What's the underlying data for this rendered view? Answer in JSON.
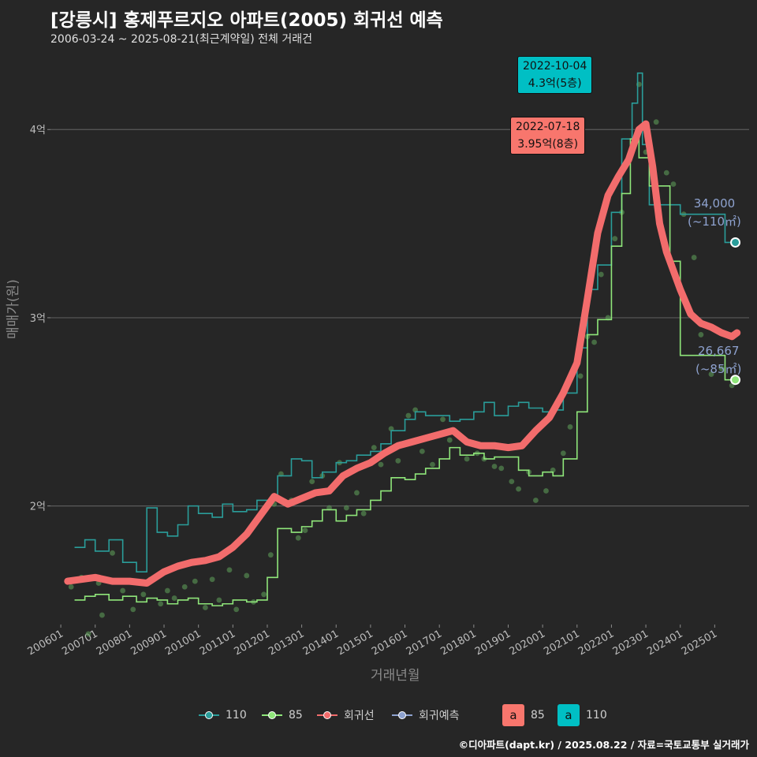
{
  "title": "[강릉시] 홍제푸르지오 아파트(2005) 회귀선 예측",
  "subtitle": "2006-03-24 ~ 2025-08-21(최근계약일) 전체 거래건",
  "credit": "©디아파트(dapt.kr) / 2025.08.22 / 자료=국토교통부 실거래가",
  "legend": {
    "items": [
      {
        "label": "110",
        "color": "#2a9d9a"
      },
      {
        "label": "85",
        "color": "#8fe67a"
      },
      {
        "label": "회귀선",
        "color": "#f26c6c"
      },
      {
        "label": "회귀예측",
        "color": "#8ea2cf"
      }
    ],
    "boxes": [
      {
        "symbol": "a",
        "label": "85",
        "color": "#f8766d"
      },
      {
        "symbol": "a",
        "label": "110",
        "color": "#00bfc4"
      }
    ]
  },
  "callouts": [
    {
      "date": "2022-10-04",
      "value": "4.3억(5층)",
      "color": "#00bfc4"
    },
    {
      "date": "2022-07-18",
      "value": "3.95억(8층)",
      "color": "#f8766d"
    }
  ],
  "end_labels": [
    {
      "value": "34,000",
      "area": "(~110㎡)"
    },
    {
      "value": "26,667",
      "area": "(~85㎡)"
    }
  ],
  "chart_data": {
    "type": "line",
    "title": "[강릉시] 홍제푸르지오 아파트(2005) 회귀선 예측",
    "subtitle": "2006-03-24 ~ 2025-08-21(최근계약일) 전체 거래건",
    "xlabel": "거래년월",
    "ylabel": "매매가(원)",
    "x_ticks": [
      "200601",
      "200701",
      "200801",
      "200901",
      "201001",
      "201101",
      "201201",
      "201301",
      "201401",
      "201501",
      "201601",
      "201701",
      "201801",
      "201901",
      "202001",
      "202101",
      "202201",
      "202301",
      "202401",
      "202501"
    ],
    "y_ticks": [
      {
        "value": 20000,
        "label": "2억"
      },
      {
        "value": 30000,
        "label": "3억"
      },
      {
        "value": 40000,
        "label": "4억"
      }
    ],
    "ylim": [
      13700,
      44200
    ],
    "xlim": [
      2005.7,
      2026.0
    ],
    "grid": true,
    "legend_position": "bottom",
    "series": [
      {
        "name": "110",
        "color": "#2a9d9a",
        "x": [
          2006.4,
          2006.7,
          2007.0,
          2007.4,
          2007.8,
          2008.2,
          2008.5,
          2008.8,
          2009.1,
          2009.4,
          2009.7,
          2010.0,
          2010.4,
          2010.7,
          2011.0,
          2011.4,
          2011.7,
          2012.0,
          2012.3,
          2012.7,
          2013.0,
          2013.3,
          2013.6,
          2014.0,
          2014.3,
          2014.6,
          2015.0,
          2015.3,
          2015.6,
          2016.0,
          2016.3,
          2016.6,
          2017.0,
          2017.3,
          2017.6,
          2018.0,
          2018.3,
          2018.6,
          2019.0,
          2019.3,
          2019.6,
          2020.0,
          2020.3,
          2020.6,
          2021.0,
          2021.3,
          2021.6,
          2022.0,
          2022.3,
          2022.6,
          2022.76,
          2022.9,
          2023.1,
          2023.4,
          2023.7,
          2024.0,
          2024.3,
          2024.6,
          2025.0,
          2025.3,
          2025.6
        ],
        "y": [
          17800,
          18200,
          17600,
          18200,
          17000,
          16500,
          19900,
          18600,
          18400,
          19000,
          20000,
          19600,
          19400,
          20100,
          19700,
          19800,
          20300,
          20300,
          21600,
          22500,
          22400,
          21500,
          21800,
          22300,
          22400,
          22700,
          22900,
          23300,
          24000,
          24600,
          25000,
          24800,
          24800,
          24500,
          24600,
          25000,
          25500,
          24800,
          25300,
          25500,
          25200,
          25000,
          25100,
          26000,
          28400,
          31500,
          32800,
          35600,
          39500,
          41400,
          43000,
          39200,
          36000,
          36000,
          36000,
          35500,
          35500,
          35500,
          35500,
          34000,
          34000
        ]
      },
      {
        "name": "85",
        "color": "#8fe67a",
        "x": [
          2006.4,
          2006.7,
          2007.0,
          2007.4,
          2007.8,
          2008.2,
          2008.5,
          2008.8,
          2009.1,
          2009.4,
          2009.7,
          2010.0,
          2010.4,
          2010.7,
          2011.0,
          2011.4,
          2011.7,
          2012.0,
          2012.3,
          2012.7,
          2013.0,
          2013.3,
          2013.6,
          2014.0,
          2014.3,
          2014.6,
          2015.0,
          2015.3,
          2015.6,
          2016.0,
          2016.3,
          2016.6,
          2017.0,
          2017.3,
          2017.6,
          2018.0,
          2018.3,
          2018.6,
          2019.0,
          2019.3,
          2019.6,
          2020.0,
          2020.3,
          2020.6,
          2021.0,
          2021.3,
          2021.6,
          2022.0,
          2022.3,
          2022.55,
          2022.8,
          2023.1,
          2023.4,
          2023.7,
          2024.0,
          2024.3,
          2024.6,
          2025.0,
          2025.3,
          2025.6
        ],
        "y": [
          15000,
          15200,
          15300,
          15000,
          15200,
          14900,
          15100,
          15000,
          14800,
          15000,
          15100,
          14800,
          14700,
          14800,
          15000,
          14900,
          15000,
          16200,
          18800,
          18600,
          18900,
          19200,
          19800,
          19200,
          19500,
          19800,
          20300,
          20800,
          21500,
          21400,
          21700,
          22000,
          22500,
          23100,
          22700,
          22800,
          22500,
          22600,
          22600,
          21900,
          21600,
          21800,
          21600,
          22500,
          25000,
          29100,
          29900,
          33800,
          36600,
          39500,
          38500,
          37000,
          37000,
          33000,
          28000,
          28000,
          28000,
          28000,
          26700,
          26700
        ]
      },
      {
        "name": "회귀선",
        "color": "#f26c6c",
        "x": [
          2006.2,
          2006.6,
          2007.0,
          2007.5,
          2008.0,
          2008.5,
          2009.0,
          2009.4,
          2009.8,
          2010.2,
          2010.6,
          2011.0,
          2011.4,
          2011.8,
          2012.2,
          2012.6,
          2013.0,
          2013.4,
          2013.8,
          2014.2,
          2014.6,
          2015.0,
          2015.4,
          2015.8,
          2016.2,
          2016.6,
          2017.0,
          2017.4,
          2017.8,
          2018.2,
          2018.6,
          2019.0,
          2019.4,
          2019.8,
          2020.2,
          2020.6,
          2021.0,
          2021.3,
          2021.6,
          2021.9,
          2022.2,
          2022.5,
          2022.8,
          2023.0,
          2023.2,
          2023.4,
          2023.6,
          2023.8,
          2024.0,
          2024.3,
          2024.6,
          2024.9,
          2025.2,
          2025.5,
          2025.65
        ],
        "y": [
          16000,
          16100,
          16200,
          16000,
          16000,
          15900,
          16500,
          16800,
          17000,
          17100,
          17300,
          17800,
          18500,
          19500,
          20500,
          20100,
          20400,
          20700,
          20800,
          21600,
          22000,
          22300,
          22800,
          23200,
          23400,
          23600,
          23800,
          24000,
          23400,
          23200,
          23200,
          23100,
          23200,
          24000,
          24700,
          26000,
          27600,
          31000,
          34500,
          36500,
          37500,
          38400,
          40000,
          40300,
          38000,
          35000,
          33500,
          32500,
          31500,
          30200,
          29700,
          29500,
          29200,
          29000,
          29200
        ]
      }
    ],
    "points": {
      "name": "거래건",
      "x": [
        2006.3,
        2006.6,
        2006.8,
        2007.1,
        2007.2,
        2007.5,
        2007.8,
        2008.1,
        2008.4,
        2008.6,
        2008.9,
        2009.1,
        2009.3,
        2009.6,
        2009.9,
        2010.2,
        2010.4,
        2010.6,
        2010.9,
        2011.1,
        2011.4,
        2011.6,
        2011.9,
        2012.1,
        2012.2,
        2012.4,
        2012.7,
        2012.9,
        2013.1,
        2013.3,
        2013.6,
        2013.8,
        2014.1,
        2014.3,
        2014.6,
        2014.8,
        2015.1,
        2015.3,
        2015.6,
        2015.8,
        2016.1,
        2016.3,
        2016.5,
        2016.8,
        2017.1,
        2017.3,
        2017.5,
        2017.8,
        2018.1,
        2018.3,
        2018.6,
        2018.8,
        2019.1,
        2019.3,
        2019.6,
        2019.8,
        2020.1,
        2020.3,
        2020.6,
        2020.8,
        2021.1,
        2021.3,
        2021.5,
        2021.7,
        2021.9,
        2022.1,
        2022.3,
        2022.6,
        2022.8,
        2023.0,
        2023.3,
        2023.6,
        2023.8,
        2024.1,
        2024.4,
        2024.6,
        2024.9,
        2025.2,
        2025.5
      ],
      "y": [
        15700,
        16200,
        13200,
        15900,
        14200,
        17500,
        15500,
        14500,
        15300,
        16100,
        14800,
        15500,
        15100,
        15700,
        16000,
        14600,
        16100,
        15000,
        16600,
        14500,
        16300,
        14900,
        15300,
        17400,
        20100,
        21700,
        20300,
        18300,
        18700,
        21300,
        21600,
        19900,
        22300,
        19900,
        20700,
        19600,
        23100,
        22200,
        24100,
        22400,
        24800,
        25100,
        22900,
        22200,
        24600,
        23500,
        23800,
        22500,
        22800,
        22500,
        22100,
        22000,
        21300,
        20900,
        21800,
        20300,
        20800,
        21900,
        22800,
        24200,
        26900,
        29000,
        28700,
        32300,
        30000,
        34200,
        35600,
        39000,
        42400,
        38800,
        40400,
        37700,
        37100,
        35500,
        33200,
        29100,
        27000,
        27300,
        26400
      ]
    },
    "annotations": [
      {
        "date": "2022-10-04",
        "text": "4.3억(5층)",
        "x": 2022.76,
        "y": 43000
      },
      {
        "date": "2022-07-18",
        "text": "3.95억(8층)",
        "x": 2022.55,
        "y": 39500
      },
      {
        "text": "34,000 (~110㎡)",
        "x": 2025.6,
        "y": 34000
      },
      {
        "text": "26,667 (~85㎡)",
        "x": 2025.6,
        "y": 26667
      }
    ]
  }
}
